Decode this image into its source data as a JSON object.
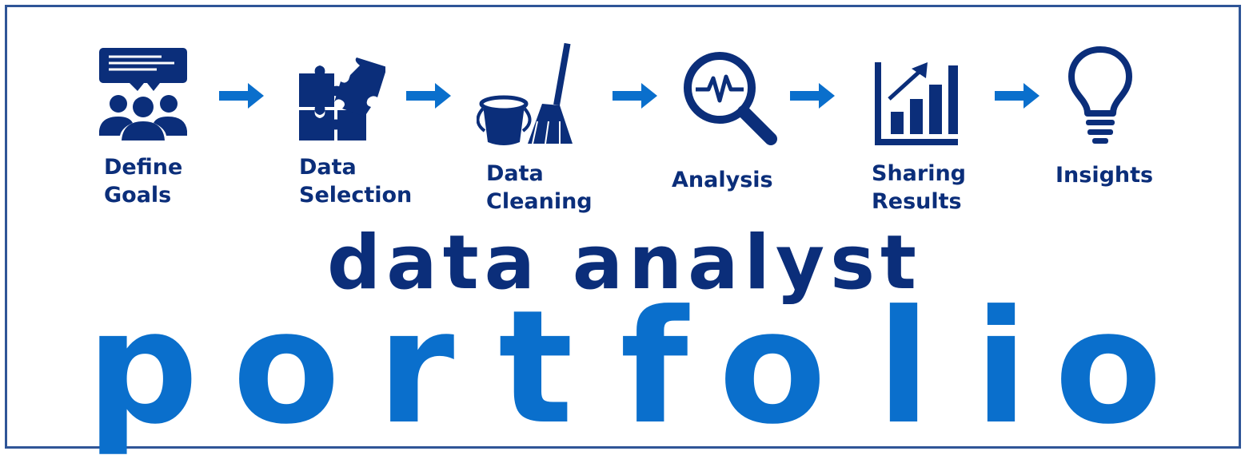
{
  "colors": {
    "border": "#2f5597",
    "dark_navy": "#0b2e7a",
    "icon_navy": "#0b2e7a",
    "arrow_blue": "#0a6fcc",
    "portfolio_blue": "#0a6fcc"
  },
  "steps": [
    {
      "icon": "people-speech-bubble-icon",
      "label_lines": [
        "Define",
        "Goals"
      ]
    },
    {
      "icon": "puzzle-pieces-icon",
      "label_lines": [
        "Data",
        "Selection"
      ]
    },
    {
      "icon": "bucket-broom-icon",
      "label_lines": [
        "Data",
        "Cleaning"
      ]
    },
    {
      "icon": "magnifier-pulse-icon",
      "label_lines": [
        "Analysis"
      ]
    },
    {
      "icon": "growth-bar-chart-icon",
      "label_lines": [
        "Sharing",
        "Results"
      ]
    },
    {
      "icon": "lightbulb-icon",
      "label_lines": [
        "Insights"
      ]
    }
  ],
  "headline": {
    "line1": "data analyst",
    "line2_letters": [
      "p",
      "o",
      "r",
      "t",
      "f",
      "o",
      "l",
      "i",
      "o"
    ]
  }
}
